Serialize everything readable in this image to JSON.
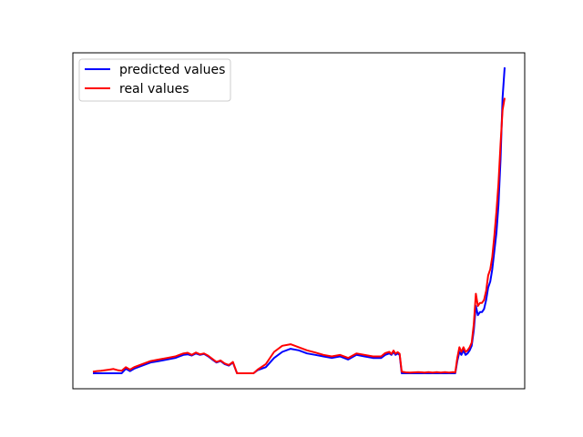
{
  "chart_data": {
    "type": "line",
    "title": "",
    "xlabel": "",
    "ylabel": "",
    "xlim": [
      0,
      1
    ],
    "ylim": [
      0,
      1
    ],
    "grid": false,
    "axis_ticks_visible": false,
    "legend": {
      "placement": "upper-left"
    },
    "series": [
      {
        "name": "predicted values",
        "color": "#0000ff",
        "x": [
          0.0,
          0.01,
          0.02,
          0.03,
          0.04,
          0.05,
          0.06,
          0.07,
          0.08,
          0.09,
          0.1,
          0.12,
          0.14,
          0.16,
          0.18,
          0.2,
          0.21,
          0.22,
          0.23,
          0.24,
          0.25,
          0.26,
          0.27,
          0.28,
          0.29,
          0.3,
          0.31,
          0.32,
          0.33,
          0.34,
          0.35,
          0.36,
          0.37,
          0.38,
          0.39,
          0.4,
          0.42,
          0.44,
          0.46,
          0.48,
          0.5,
          0.52,
          0.54,
          0.56,
          0.58,
          0.6,
          0.62,
          0.64,
          0.66,
          0.68,
          0.7,
          0.71,
          0.72,
          0.725,
          0.73,
          0.735,
          0.74,
          0.745,
          0.75,
          0.76,
          0.77,
          0.78,
          0.79,
          0.8,
          0.805,
          0.81,
          0.815,
          0.82,
          0.825,
          0.83,
          0.835,
          0.84,
          0.845,
          0.85,
          0.855,
          0.86,
          0.865,
          0.87,
          0.875,
          0.88,
          0.885,
          0.89,
          0.895,
          0.9,
          0.905,
          0.91,
          0.915,
          0.92,
          0.925,
          0.93,
          0.935,
          0.94,
          0.945,
          0.95,
          0.955,
          0.96,
          0.965,
          0.97,
          0.975,
          0.98,
          0.985,
          0.99,
          0.995,
          1.0
        ],
        "y": [
          0.0,
          0.0,
          0.0,
          0.0,
          0.0,
          0.0,
          0.0,
          0.0,
          0.015,
          0.007,
          0.015,
          0.025,
          0.035,
          0.04,
          0.045,
          0.05,
          0.055,
          0.06,
          0.062,
          0.058,
          0.065,
          0.06,
          0.063,
          0.055,
          0.045,
          0.035,
          0.04,
          0.03,
          0.025,
          0.035,
          0.0,
          0.0,
          0.0,
          0.0,
          0.0,
          0.01,
          0.02,
          0.05,
          0.07,
          0.08,
          0.075,
          0.065,
          0.06,
          0.055,
          0.05,
          0.055,
          0.045,
          0.06,
          0.055,
          0.05,
          0.05,
          0.06,
          0.065,
          0.06,
          0.07,
          0.06,
          0.065,
          0.06,
          0.0,
          0.0,
          0.0,
          0.0,
          0.0,
          0.0,
          0.0,
          0.0,
          0.0,
          0.0,
          0.0,
          0.0,
          0.0,
          0.0,
          0.0,
          0.0,
          0.0,
          0.0,
          0.0,
          0.0,
          0.0,
          0.0,
          0.04,
          0.07,
          0.06,
          0.075,
          0.06,
          0.065,
          0.075,
          0.09,
          0.14,
          0.22,
          0.19,
          0.2,
          0.2,
          0.21,
          0.24,
          0.28,
          0.3,
          0.34,
          0.4,
          0.46,
          0.55,
          0.7,
          0.9,
          1.0
        ],
        "x_pct": null
      },
      {
        "name": "real values",
        "color": "#ff0000",
        "x": [
          0.0,
          0.01,
          0.02,
          0.03,
          0.04,
          0.05,
          0.06,
          0.07,
          0.08,
          0.09,
          0.1,
          0.12,
          0.14,
          0.16,
          0.18,
          0.2,
          0.21,
          0.22,
          0.23,
          0.24,
          0.25,
          0.26,
          0.27,
          0.28,
          0.29,
          0.3,
          0.31,
          0.32,
          0.33,
          0.34,
          0.35,
          0.36,
          0.37,
          0.38,
          0.39,
          0.4,
          0.42,
          0.44,
          0.46,
          0.48,
          0.5,
          0.52,
          0.54,
          0.56,
          0.58,
          0.6,
          0.62,
          0.64,
          0.66,
          0.68,
          0.7,
          0.71,
          0.72,
          0.725,
          0.73,
          0.735,
          0.74,
          0.745,
          0.75,
          0.76,
          0.77,
          0.78,
          0.79,
          0.8,
          0.805,
          0.81,
          0.815,
          0.82,
          0.825,
          0.83,
          0.835,
          0.84,
          0.845,
          0.85,
          0.855,
          0.86,
          0.865,
          0.87,
          0.875,
          0.88,
          0.885,
          0.89,
          0.895,
          0.9,
          0.905,
          0.91,
          0.915,
          0.92,
          0.925,
          0.93,
          0.935,
          0.94,
          0.945,
          0.95,
          0.955,
          0.96,
          0.965,
          0.97,
          0.975,
          0.98,
          0.985,
          0.99,
          0.995,
          1.0
        ],
        "y": [
          0.005,
          0.007,
          0.008,
          0.01,
          0.012,
          0.014,
          0.01,
          0.008,
          0.02,
          0.012,
          0.02,
          0.03,
          0.04,
          0.045,
          0.05,
          0.055,
          0.06,
          0.065,
          0.067,
          0.06,
          0.068,
          0.062,
          0.065,
          0.057,
          0.047,
          0.037,
          0.042,
          0.032,
          0.027,
          0.037,
          0.0,
          0.0,
          0.0,
          0.0,
          0.0,
          0.012,
          0.03,
          0.07,
          0.09,
          0.095,
          0.085,
          0.075,
          0.068,
          0.06,
          0.055,
          0.06,
          0.05,
          0.065,
          0.06,
          0.055,
          0.055,
          0.066,
          0.07,
          0.063,
          0.074,
          0.064,
          0.069,
          0.064,
          0.005,
          0.003,
          0.002,
          0.003,
          0.004,
          0.003,
          0.002,
          0.003,
          0.004,
          0.003,
          0.002,
          0.003,
          0.004,
          0.003,
          0.002,
          0.003,
          0.004,
          0.003,
          0.002,
          0.003,
          0.004,
          0.003,
          0.05,
          0.085,
          0.07,
          0.085,
          0.07,
          0.075,
          0.085,
          0.1,
          0.16,
          0.26,
          0.22,
          0.23,
          0.23,
          0.24,
          0.27,
          0.32,
          0.34,
          0.38,
          0.45,
          0.53,
          0.62,
          0.75,
          0.86,
          0.9
        ]
      }
    ]
  }
}
